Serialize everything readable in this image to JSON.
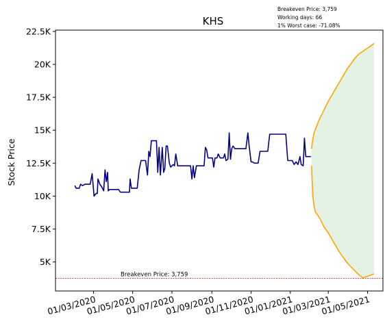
{
  "chart_data": {
    "type": "line",
    "title": "KHS",
    "ylabel": "Stock Price",
    "xlabel": "",
    "ylim": [
      2800,
      22600
    ],
    "xlim": [
      "2020-01-02",
      "2021-05-25"
    ],
    "grid": false,
    "info_lines": [
      "Breakeven Price: 3,759",
      "Working days: 66",
      "1% Worst case: -71.08%"
    ],
    "breakeven": {
      "value": 3759,
      "label": "Breakeven Price: 3,759",
      "color": "#d62728"
    },
    "y_ticks": [
      {
        "value": 5000,
        "label": "5K"
      },
      {
        "value": 7500,
        "label": "7.5K"
      },
      {
        "value": 10000,
        "label": "10K"
      },
      {
        "value": 12500,
        "label": "12.5K"
      },
      {
        "value": 15000,
        "label": "15K"
      },
      {
        "value": 17500,
        "label": "17.5K"
      },
      {
        "value": 20000,
        "label": "20K"
      },
      {
        "value": 22500,
        "label": "22.5K"
      }
    ],
    "x_ticks": [
      {
        "value": "2020-03-01",
        "label": "01/03/2020"
      },
      {
        "value": "2020-05-01",
        "label": "01/05/2020"
      },
      {
        "value": "2020-07-01",
        "label": "01/07/2020"
      },
      {
        "value": "2020-09-01",
        "label": "01/09/2020"
      },
      {
        "value": "2020-11-01",
        "label": "01/11/2020"
      },
      {
        "value": "2021-01-01",
        "label": "01/01/2021"
      },
      {
        "value": "2021-03-01",
        "label": "01/03/2021"
      },
      {
        "value": "2021-05-01",
        "label": "01/05/2021"
      }
    ],
    "series": [
      {
        "color": "#00008b",
        "points": [
          [
            "2020-02-01",
            10800
          ],
          [
            "2020-02-03",
            10600
          ],
          [
            "2020-02-08",
            10600
          ],
          [
            "2020-02-10",
            10900
          ],
          [
            "2020-02-13",
            10800
          ],
          [
            "2020-02-17",
            10900
          ],
          [
            "2020-02-25",
            10900
          ],
          [
            "2020-02-28",
            11700
          ],
          [
            "2020-03-02",
            10000
          ],
          [
            "2020-03-05",
            10200
          ],
          [
            "2020-03-07",
            10200
          ],
          [
            "2020-03-08",
            11300
          ],
          [
            "2020-03-11",
            10900
          ],
          [
            "2020-03-14",
            10700
          ],
          [
            "2020-03-17",
            10400
          ],
          [
            "2020-03-19",
            12000
          ],
          [
            "2020-03-21",
            11100
          ],
          [
            "2020-03-23",
            11800
          ],
          [
            "2020-03-24",
            10400
          ],
          [
            "2020-03-26",
            10500
          ],
          [
            "2020-04-09",
            10500
          ],
          [
            "2020-04-12",
            10300
          ],
          [
            "2020-04-21",
            10300
          ],
          [
            "2020-04-26",
            10300
          ],
          [
            "2020-04-27",
            11300
          ],
          [
            "2020-04-29",
            10600
          ],
          [
            "2020-05-08",
            10600
          ],
          [
            "2020-05-11",
            12000
          ],
          [
            "2020-05-14",
            12700
          ],
          [
            "2020-05-21",
            12700
          ],
          [
            "2020-05-24",
            11600
          ],
          [
            "2020-05-26",
            13400
          ],
          [
            "2020-05-28",
            13000
          ],
          [
            "2020-05-30",
            14200
          ],
          [
            "2020-06-07",
            14200
          ],
          [
            "2020-06-09",
            11800
          ],
          [
            "2020-06-11",
            13700
          ],
          [
            "2020-06-13",
            11600
          ],
          [
            "2020-06-16",
            13700
          ],
          [
            "2020-06-18",
            11800
          ],
          [
            "2020-06-20",
            12100
          ],
          [
            "2020-06-22",
            13800
          ],
          [
            "2020-06-24",
            13800
          ],
          [
            "2020-06-27",
            12500
          ],
          [
            "2020-06-29",
            12200
          ],
          [
            "2020-07-01",
            12300
          ],
          [
            "2020-07-03",
            12400
          ],
          [
            "2020-07-05",
            12300
          ],
          [
            "2020-07-07",
            13200
          ],
          [
            "2020-07-10",
            12300
          ],
          [
            "2020-07-30",
            12300
          ],
          [
            "2020-08-01",
            11300
          ],
          [
            "2020-08-03",
            12300
          ],
          [
            "2020-08-05",
            11400
          ],
          [
            "2020-08-08",
            12300
          ],
          [
            "2020-08-20",
            12300
          ],
          [
            "2020-08-22",
            13700
          ],
          [
            "2020-08-24",
            13500
          ],
          [
            "2020-08-26",
            12900
          ],
          [
            "2020-09-02",
            12900
          ],
          [
            "2020-09-04",
            12200
          ],
          [
            "2020-09-06",
            12900
          ],
          [
            "2020-09-09",
            12900
          ],
          [
            "2020-09-11",
            13200
          ],
          [
            "2020-09-14",
            12900
          ],
          [
            "2020-09-19",
            12900
          ],
          [
            "2020-09-21",
            13200
          ],
          [
            "2020-09-23",
            12700
          ],
          [
            "2020-09-26",
            12800
          ],
          [
            "2020-09-28",
            14800
          ],
          [
            "2020-09-30",
            12800
          ],
          [
            "2020-10-02",
            13600
          ],
          [
            "2020-10-04",
            13800
          ],
          [
            "2020-10-07",
            13600
          ],
          [
            "2020-10-24",
            13600
          ],
          [
            "2020-10-27",
            14800
          ],
          [
            "2020-10-29",
            13800
          ],
          [
            "2020-11-01",
            12600
          ],
          [
            "2020-11-03",
            12600
          ],
          [
            "2020-11-06",
            12500
          ],
          [
            "2020-11-12",
            12500
          ],
          [
            "2020-11-15",
            13400
          ],
          [
            "2020-11-27",
            13400
          ],
          [
            "2020-11-30",
            14700
          ],
          [
            "2020-12-25",
            14700
          ],
          [
            "2020-12-28",
            12700
          ],
          [
            "2021-01-04",
            12700
          ],
          [
            "2021-01-07",
            12400
          ],
          [
            "2021-01-10",
            12600
          ],
          [
            "2021-01-13",
            12400
          ],
          [
            "2021-01-16",
            13000
          ],
          [
            "2021-01-18",
            12400
          ],
          [
            "2021-01-21",
            12300
          ],
          [
            "2021-01-23",
            14400
          ],
          [
            "2021-01-25",
            13000
          ],
          [
            "2021-02-02",
            13000
          ]
        ]
      },
      {
        "color": "#ffa500",
        "points": [
          [
            "2021-02-03",
            13600
          ],
          [
            "2021-02-05",
            14300
          ],
          [
            "2021-02-07",
            14800
          ],
          [
            "2021-02-10",
            15200
          ],
          [
            "2021-02-14",
            15700
          ],
          [
            "2021-02-18",
            16100
          ],
          [
            "2021-02-23",
            16600
          ],
          [
            "2021-03-01",
            17200
          ],
          [
            "2021-03-07",
            17700
          ],
          [
            "2021-03-13",
            18200
          ],
          [
            "2021-03-19",
            18700
          ],
          [
            "2021-03-25",
            19200
          ],
          [
            "2021-03-31",
            19700
          ],
          [
            "2021-04-06",
            20100
          ],
          [
            "2021-04-12",
            20500
          ],
          [
            "2021-04-18",
            20800
          ],
          [
            "2021-04-24",
            21000
          ],
          [
            "2021-04-30",
            21200
          ],
          [
            "2021-05-06",
            21400
          ],
          [
            "2021-05-11",
            21600
          ]
        ]
      },
      {
        "color": "#ffa500",
        "points": [
          [
            "2021-02-03",
            12300
          ],
          [
            "2021-02-05",
            10000
          ],
          [
            "2021-02-07",
            9200
          ],
          [
            "2021-02-09",
            8800
          ],
          [
            "2021-02-12",
            8600
          ],
          [
            "2021-02-16",
            8300
          ],
          [
            "2021-02-22",
            7700
          ],
          [
            "2021-03-01",
            7200
          ],
          [
            "2021-03-07",
            6700
          ],
          [
            "2021-03-13",
            6200
          ],
          [
            "2021-03-19",
            5700
          ],
          [
            "2021-03-25",
            5300
          ],
          [
            "2021-03-31",
            4900
          ],
          [
            "2021-04-06",
            4600
          ],
          [
            "2021-04-12",
            4300
          ],
          [
            "2021-04-18",
            4000
          ],
          [
            "2021-04-24",
            3800
          ],
          [
            "2021-04-30",
            3900
          ],
          [
            "2021-05-06",
            4000
          ],
          [
            "2021-05-11",
            4100
          ]
        ]
      }
    ],
    "band": {
      "color": "#d9eed9",
      "fill_opacity": 0.75,
      "between": [
        1,
        2
      ]
    }
  }
}
